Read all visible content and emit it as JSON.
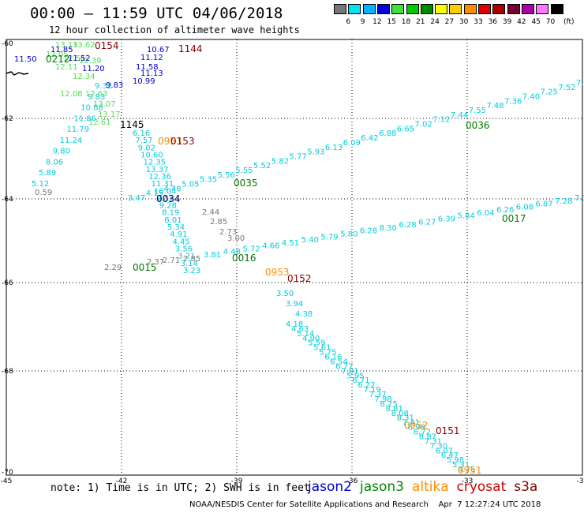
{
  "header": {
    "title": "00:00 – 11:59 UTC 04/06/2018",
    "subtitle": "12 hour collection of altimeter wave heights"
  },
  "legend": {
    "unit_label": "(ft)",
    "levels": [
      "3",
      "6",
      "9",
      "12",
      "15",
      "18",
      "21",
      "24",
      "27",
      "30",
      "33",
      "36",
      "39",
      "42",
      "45",
      "70"
    ],
    "colors": [
      "#777777",
      "#00e5ee",
      "#00b4ff",
      "#0000dd",
      "#40e040",
      "#00cc00",
      "#008800",
      "#ffff00",
      "#ffcc00",
      "#ff8c00",
      "#dd0000",
      "#aa0000",
      "#770033",
      "#aa00aa",
      "#ff77ff",
      "#000000"
    ]
  },
  "axes": {
    "y_ticks": [
      "-60",
      "-62",
      "-64",
      "-66",
      "-68",
      "-70"
    ],
    "x_ticks": [
      "-45",
      "-42",
      "-39",
      "-36",
      "-33",
      "-30"
    ]
  },
  "tracks": [
    {
      "name": "t1",
      "color": "#00ccdd",
      "labels": [
        "5.12",
        "5.89",
        "8.06",
        "9.80",
        "11.24",
        "11.79",
        "11.86",
        "10.88",
        "9.83",
        "9.32"
      ]
    },
    {
      "name": "t2",
      "color": "#00ccdd",
      "labels": [
        "6.16",
        "7.57",
        "9.02",
        "10.60",
        "12.35",
        "13.37",
        "12.36",
        "11.31",
        "10.04",
        "9.52",
        "9.28",
        "8.19",
        "6.01",
        "5.34",
        "4.91",
        "4.45",
        "3.56",
        "3.21",
        "3.14",
        "3.23"
      ]
    },
    {
      "name": "t3",
      "color": "#00ccdd",
      "labels": [
        "4.18",
        "4.63",
        "5.14",
        "4.90",
        "5.59",
        "5.61",
        "5.75",
        "6.16",
        "6.54",
        "6.77",
        "7.01",
        "5.95",
        "6.71",
        "6.22",
        "7.19",
        "7.37",
        "7.98",
        "8.25",
        "8.81",
        "8.08",
        "8.31",
        "7.41",
        "6.98",
        "6.72",
        "8.87",
        "7.31",
        "7.30",
        "6.07",
        "6.47",
        "5.98",
        "5.31",
        "4.76"
      ]
    },
    {
      "name": "t4",
      "color": "#00ccdd",
      "labels": [
        "3.81",
        "4.48",
        "5.72",
        "4.66",
        "4.51",
        "5.40",
        "5.79",
        "5.80",
        "6.28",
        "8.30",
        "6.28",
        "6.27",
        "6.39",
        "5.84",
        "6.04",
        "6.26",
        "6.08",
        "6.87",
        "7.28",
        "7.3"
      ]
    },
    {
      "name": "t5",
      "color": "#00ccdd",
      "labels": [
        "3.47",
        "4.15",
        "4.48",
        "5.05",
        "5.35",
        "5.56",
        "5.55",
        "5.52",
        "5.82",
        "5.77",
        "5.93",
        "6.13",
        "6.09",
        "6.42",
        "6.88",
        "6.65",
        "7.02",
        "7.12",
        "7.44",
        "7.55",
        "7.48",
        "7.36",
        "7.40",
        "7.25",
        "7.52",
        "7.6"
      ]
    }
  ],
  "extra_labels": [
    {
      "text": "13.13",
      "color": "#55dd55"
    },
    {
      "text": "13.62",
      "color": "#55dd55"
    },
    {
      "text": "12.51",
      "color": "#55dd55"
    },
    {
      "text": "12.39",
      "color": "#55dd55"
    },
    {
      "text": "12.11",
      "color": "#55dd55"
    },
    {
      "text": "12.34",
      "color": "#55dd55"
    },
    {
      "text": "12.08",
      "color": "#55dd55"
    },
    {
      "text": "12.63",
      "color": "#55dd55"
    },
    {
      "text": "13.07",
      "color": "#55dd55"
    },
    {
      "text": "13.17",
      "color": "#55dd55"
    },
    {
      "text": "12.61",
      "color": "#55dd55"
    },
    {
      "text": "12.05",
      "color": "#55dd55"
    },
    {
      "text": "11.85",
      "color": "#0000cc"
    },
    {
      "text": "11.50",
      "color": "#0000cc"
    },
    {
      "text": "11.52",
      "color": "#0000cc"
    },
    {
      "text": "11.20",
      "color": "#0000cc"
    },
    {
      "text": "10.67",
      "color": "#0000cc"
    },
    {
      "text": "11.12",
      "color": "#0000cc"
    },
    {
      "text": "11.58",
      "color": "#0000cc"
    },
    {
      "text": "11.13",
      "color": "#0000cc"
    },
    {
      "text": "10.99",
      "color": "#0000cc"
    },
    {
      "text": "9.83",
      "color": "#0000cc"
    },
    {
      "text": "0.59",
      "color": "#777777"
    },
    {
      "text": "2.44",
      "color": "#777777"
    },
    {
      "text": "2.85",
      "color": "#777777"
    },
    {
      "text": "2.73",
      "color": "#777777"
    },
    {
      "text": "3.00",
      "color": "#777777"
    },
    {
      "text": "2.29",
      "color": "#777777"
    },
    {
      "text": "2.37",
      "color": "#777777"
    },
    {
      "text": "2.71",
      "color": "#777777"
    },
    {
      "text": "2.85",
      "color": "#777777"
    },
    {
      "text": "3.50",
      "color": "#00ccdd"
    },
    {
      "text": "3.94",
      "color": "#00ccdd"
    },
    {
      "text": "4.38",
      "color": "#00ccdd"
    }
  ],
  "time_stamps": [
    {
      "text": "0154",
      "color": "#880000"
    },
    {
      "text": "1144",
      "color": "#880000"
    },
    {
      "text": "0212",
      "color": "#007700"
    },
    {
      "text": "1145",
      "color": "#000000"
    },
    {
      "text": "0953",
      "color": "#ff8c00"
    },
    {
      "text": "0153",
      "color": "#880000"
    },
    {
      "text": "0035",
      "color": "#007700"
    },
    {
      "text": "0034",
      "color": "#000066"
    },
    {
      "text": "0016",
      "color": "#007700"
    },
    {
      "text": "0015",
      "color": "#007700"
    },
    {
      "text": "0953",
      "color": "#ff8c00"
    },
    {
      "text": "0152",
      "color": "#880000"
    },
    {
      "text": "0036",
      "color": "#007700"
    },
    {
      "text": "0017",
      "color": "#007700"
    },
    {
      "text": "0952",
      "color": "#ff8c00"
    },
    {
      "text": "0151",
      "color": "#880000"
    },
    {
      "text": "0951",
      "color": "#ff8c00"
    }
  ],
  "note": "note: 1) Time is in UTC; 2) SWH is in feet",
  "satellites": [
    {
      "name": "jason2",
      "color": "#0000cc"
    },
    {
      "name": "jason3",
      "color": "#008800"
    },
    {
      "name": "altika",
      "color": "#ff8c00"
    },
    {
      "name": "cryosat",
      "color": "#cc0000"
    },
    {
      "name": "s3a",
      "color": "#880000"
    }
  ],
  "footer": "NOAA/NESDIS Center for Satellite Applications and Research    Apr  7 12:27:24 UTC 2018"
}
